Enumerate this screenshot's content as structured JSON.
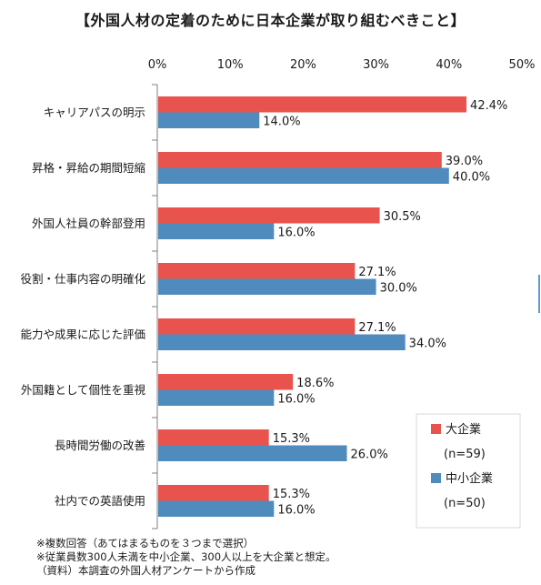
{
  "title": "【外国人材の定着のために日本企業が取り組むべきこと】",
  "chart_data": {
    "type": "bar",
    "orientation": "horizontal",
    "title": "【外国人材の定着のために日本企業が取り組むべきこと】",
    "categories": [
      "キャリアパスの明示",
      "昇格・昇給の期間短縮",
      "外国人社員の幹部登用",
      "役割・仕事内容の明確化",
      "能力や成果に応じた評価",
      "外国籍として個性を重視",
      "長時間労働の改善",
      "社内での英語使用"
    ],
    "series": [
      {
        "name": "大企業",
        "n_label": "(n=59)",
        "color": "#e8534e",
        "values": [
          42.4,
          39.0,
          30.5,
          27.1,
          27.1,
          18.6,
          15.3,
          15.3
        ],
        "labels": [
          "42.4%",
          "39.0%",
          "30.5%",
          "27.1%",
          "27.1%",
          "18.6%",
          "15.3%",
          "15.3%"
        ]
      },
      {
        "name": "中小企業",
        "n_label": "(n=50)",
        "color": "#4f8bbd",
        "values": [
          14.0,
          40.0,
          16.0,
          30.0,
          34.0,
          16.0,
          26.0,
          16.0
        ],
        "labels": [
          "14.0%",
          "40.0%",
          "16.0%",
          "30.0%",
          "34.0%",
          "16.0%",
          "26.0%",
          "16.0%"
        ]
      }
    ],
    "xlim": [
      0,
      50
    ],
    "xticks": [
      0,
      10,
      20,
      30,
      40,
      50
    ],
    "xtick_labels": [
      "0%",
      "10%",
      "20%",
      "30%",
      "40%",
      "50%"
    ],
    "xaxis_position": "top",
    "grid": false,
    "legend_position": "bottom-right"
  },
  "footnotes": [
    "※複数回答（あてはまるものを３つまで選択）",
    "※従業員数300人未満を中小企業、300人以上を大企業と想定。",
    "（資料）本調査の外国人材アンケートから作成"
  ]
}
